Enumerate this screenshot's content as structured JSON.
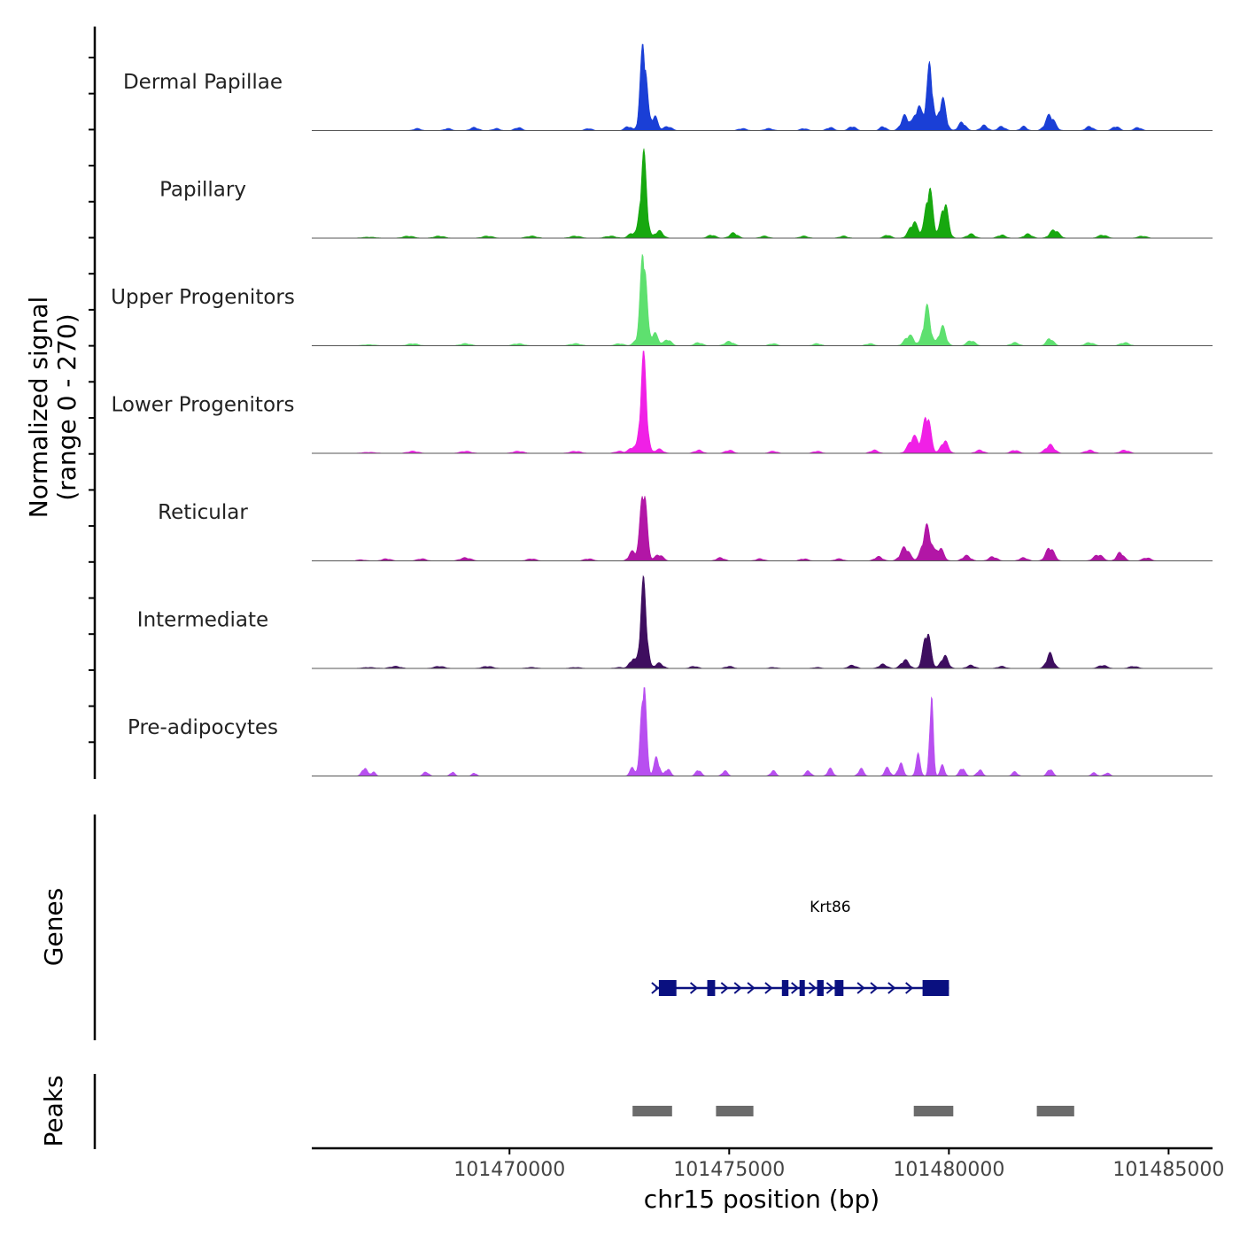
{
  "chart_data": {
    "type": "area",
    "title": "",
    "chromosome": "chr15",
    "xlabel": "chr15 position (bp)",
    "ylabel_line1": "Normalized signal",
    "ylabel_line2": "(range 0 - 270)",
    "xlim": [
      101465500,
      101486000
    ],
    "ylim": [
      0,
      270
    ],
    "xticks": [
      101470000,
      101475000,
      101480000,
      101485000
    ],
    "xtick_labels": [
      "101470000",
      "101475000",
      "101480000",
      "101485000"
    ],
    "signal_extent": [
      101466500,
      101485000
    ],
    "tracks": [
      {
        "name": "Dermal Papillae",
        "color": "#1a3fd6",
        "peaks": [
          [
            101467900,
            0.02,
            80
          ],
          [
            101468600,
            0.02,
            80
          ],
          [
            101469200,
            0.03,
            90
          ],
          [
            101469700,
            0.02,
            80
          ],
          [
            101470200,
            0.03,
            80
          ],
          [
            101471800,
            0.02,
            80
          ],
          [
            101472700,
            0.04,
            80
          ],
          [
            101473050,
            0.85,
            70
          ],
          [
            101473300,
            0.14,
            70
          ],
          [
            101473600,
            0.04,
            90
          ],
          [
            101475300,
            0.02,
            90
          ],
          [
            101475900,
            0.02,
            90
          ],
          [
            101476700,
            0.02,
            80
          ],
          [
            101477300,
            0.03,
            80
          ],
          [
            101477800,
            0.04,
            80
          ],
          [
            101478500,
            0.04,
            70
          ],
          [
            101479000,
            0.14,
            90
          ],
          [
            101479300,
            0.22,
            90
          ],
          [
            101479550,
            0.35,
            80
          ],
          [
            101479580,
            0.3,
            50
          ],
          [
            101479850,
            0.3,
            80
          ],
          [
            101480300,
            0.08,
            80
          ],
          [
            101480800,
            0.05,
            80
          ],
          [
            101481200,
            0.04,
            80
          ],
          [
            101481700,
            0.04,
            70
          ],
          [
            101482300,
            0.15,
            100
          ],
          [
            101483200,
            0.04,
            80
          ],
          [
            101483800,
            0.04,
            80
          ],
          [
            101484300,
            0.03,
            80
          ]
        ]
      },
      {
        "name": "Papillary",
        "color": "#17a80f",
        "peaks": [
          [
            101466800,
            0.01,
            150
          ],
          [
            101467700,
            0.02,
            120
          ],
          [
            101468400,
            0.02,
            120
          ],
          [
            101469500,
            0.02,
            120
          ],
          [
            101470500,
            0.02,
            120
          ],
          [
            101471500,
            0.02,
            120
          ],
          [
            101472300,
            0.02,
            120
          ],
          [
            101472800,
            0.05,
            90
          ],
          [
            101473050,
            0.78,
            70
          ],
          [
            101473400,
            0.07,
            90
          ],
          [
            101474600,
            0.03,
            90
          ],
          [
            101475100,
            0.05,
            90
          ],
          [
            101475800,
            0.02,
            90
          ],
          [
            101476700,
            0.02,
            90
          ],
          [
            101477600,
            0.02,
            90
          ],
          [
            101478600,
            0.03,
            80
          ],
          [
            101479200,
            0.15,
            100
          ],
          [
            101479550,
            0.48,
            80
          ],
          [
            101479900,
            0.34,
            80
          ],
          [
            101480500,
            0.04,
            90
          ],
          [
            101481200,
            0.03,
            90
          ],
          [
            101481800,
            0.04,
            90
          ],
          [
            101482400,
            0.08,
            100
          ],
          [
            101483500,
            0.03,
            100
          ],
          [
            101484400,
            0.02,
            100
          ]
        ]
      },
      {
        "name": "Upper Progenitors",
        "color": "#5ee06f",
        "peaks": [
          [
            101466800,
            0.01,
            150
          ],
          [
            101467800,
            0.02,
            120
          ],
          [
            101469000,
            0.02,
            120
          ],
          [
            101470200,
            0.02,
            120
          ],
          [
            101471500,
            0.02,
            120
          ],
          [
            101472500,
            0.02,
            100
          ],
          [
            101472900,
            0.05,
            80
          ],
          [
            101473050,
            0.95,
            65
          ],
          [
            101473300,
            0.12,
            80
          ],
          [
            101473600,
            0.06,
            80
          ],
          [
            101474300,
            0.03,
            90
          ],
          [
            101475000,
            0.04,
            100
          ],
          [
            101476000,
            0.02,
            90
          ],
          [
            101477000,
            0.02,
            90
          ],
          [
            101478200,
            0.02,
            90
          ],
          [
            101479100,
            0.1,
            100
          ],
          [
            101479500,
            0.36,
            80
          ],
          [
            101479850,
            0.18,
            80
          ],
          [
            101480500,
            0.05,
            90
          ],
          [
            101481500,
            0.03,
            90
          ],
          [
            101482300,
            0.07,
            80
          ],
          [
            101483200,
            0.03,
            100
          ],
          [
            101484000,
            0.03,
            100
          ]
        ]
      },
      {
        "name": "Lower Progenitors",
        "color": "#f020e6",
        "peaks": [
          [
            101466800,
            0.01,
            150
          ],
          [
            101467800,
            0.02,
            120
          ],
          [
            101469000,
            0.02,
            120
          ],
          [
            101470200,
            0.02,
            120
          ],
          [
            101471500,
            0.02,
            120
          ],
          [
            101472500,
            0.02,
            100
          ],
          [
            101472800,
            0.06,
            80
          ],
          [
            101473050,
            0.9,
            70
          ],
          [
            101473400,
            0.04,
            90
          ],
          [
            101474300,
            0.03,
            90
          ],
          [
            101475000,
            0.03,
            90
          ],
          [
            101476000,
            0.02,
            90
          ],
          [
            101477000,
            0.02,
            90
          ],
          [
            101478300,
            0.03,
            90
          ],
          [
            101479200,
            0.16,
            110
          ],
          [
            101479500,
            0.38,
            80
          ],
          [
            101479900,
            0.12,
            80
          ],
          [
            101480700,
            0.03,
            90
          ],
          [
            101481500,
            0.03,
            90
          ],
          [
            101482300,
            0.08,
            100
          ],
          [
            101483200,
            0.03,
            100
          ],
          [
            101484000,
            0.03,
            100
          ]
        ]
      },
      {
        "name": "Reticular",
        "color": "#b216a6",
        "peaks": [
          [
            101466600,
            0.01,
            120
          ],
          [
            101467200,
            0.02,
            100
          ],
          [
            101468000,
            0.02,
            100
          ],
          [
            101469000,
            0.03,
            120
          ],
          [
            101470500,
            0.02,
            100
          ],
          [
            101471800,
            0.02,
            100
          ],
          [
            101472800,
            0.09,
            80
          ],
          [
            101473050,
            0.73,
            70
          ],
          [
            101473400,
            0.06,
            90
          ],
          [
            101474800,
            0.03,
            90
          ],
          [
            101475700,
            0.02,
            90
          ],
          [
            101476700,
            0.02,
            90
          ],
          [
            101477500,
            0.02,
            90
          ],
          [
            101478400,
            0.04,
            90
          ],
          [
            101479000,
            0.13,
            100
          ],
          [
            101479500,
            0.32,
            100
          ],
          [
            101479800,
            0.12,
            80
          ],
          [
            101480400,
            0.05,
            90
          ],
          [
            101481000,
            0.04,
            90
          ],
          [
            101481700,
            0.03,
            90
          ],
          [
            101482300,
            0.13,
            90
          ],
          [
            101483400,
            0.06,
            100
          ],
          [
            101483900,
            0.08,
            80
          ],
          [
            101484500,
            0.03,
            90
          ]
        ]
      },
      {
        "name": "Intermediate",
        "color": "#3e0e5f",
        "peaks": [
          [
            101466800,
            0.01,
            150
          ],
          [
            101467400,
            0.02,
            120
          ],
          [
            101468400,
            0.02,
            120
          ],
          [
            101469500,
            0.02,
            120
          ],
          [
            101470500,
            0.01,
            120
          ],
          [
            101471500,
            0.01,
            120
          ],
          [
            101472500,
            0.01,
            100
          ],
          [
            101472800,
            0.09,
            70
          ],
          [
            101473050,
            0.8,
            70
          ],
          [
            101473400,
            0.05,
            90
          ],
          [
            101474200,
            0.02,
            90
          ],
          [
            101475000,
            0.02,
            90
          ],
          [
            101476000,
            0.01,
            90
          ],
          [
            101477000,
            0.01,
            90
          ],
          [
            101477800,
            0.03,
            90
          ],
          [
            101478500,
            0.04,
            90
          ],
          [
            101479000,
            0.08,
            90
          ],
          [
            101479500,
            0.36,
            80
          ],
          [
            101479900,
            0.12,
            80
          ],
          [
            101480500,
            0.03,
            90
          ],
          [
            101481200,
            0.02,
            90
          ],
          [
            101482300,
            0.14,
            80
          ],
          [
            101483500,
            0.03,
            100
          ],
          [
            101484200,
            0.02,
            100
          ]
        ]
      },
      {
        "name": "Pre-adipocytes",
        "color": "#b84ff0",
        "peaks": [
          [
            101466700,
            0.08,
            60
          ],
          [
            101466900,
            0.04,
            50
          ],
          [
            101468100,
            0.04,
            60
          ],
          [
            101468700,
            0.04,
            50
          ],
          [
            101469200,
            0.03,
            50
          ],
          [
            101472800,
            0.08,
            60
          ],
          [
            101473050,
            0.95,
            60
          ],
          [
            101473350,
            0.18,
            60
          ],
          [
            101473600,
            0.07,
            60
          ],
          [
            101474300,
            0.06,
            60
          ],
          [
            101474900,
            0.05,
            60
          ],
          [
            101476000,
            0.05,
            60
          ],
          [
            101476800,
            0.05,
            60
          ],
          [
            101477300,
            0.07,
            60
          ],
          [
            101478000,
            0.07,
            60
          ],
          [
            101478600,
            0.08,
            60
          ],
          [
            101478900,
            0.12,
            60
          ],
          [
            101479300,
            0.2,
            50
          ],
          [
            101479600,
            0.82,
            40
          ],
          [
            101479850,
            0.1,
            50
          ],
          [
            101480300,
            0.08,
            60
          ],
          [
            101480700,
            0.06,
            60
          ],
          [
            101481500,
            0.04,
            60
          ],
          [
            101482300,
            0.07,
            60
          ],
          [
            101483300,
            0.03,
            60
          ],
          [
            101483600,
            0.03,
            60
          ]
        ]
      }
    ],
    "genes_panel_label": "Genes",
    "genes": [
      {
        "name": "Krt86",
        "strand": "+",
        "start": 101473400,
        "end": 101480000,
        "exons": [
          [
            101473400,
            101473800
          ],
          [
            101474500,
            101474680
          ],
          [
            101476200,
            101476350
          ],
          [
            101476600,
            101476720
          ],
          [
            101477000,
            101477150
          ],
          [
            101477400,
            101477600
          ],
          [
            101479400,
            101480000
          ]
        ],
        "arrows": [
          101474200,
          101474900,
          101475200,
          101475500,
          101475900,
          101476500,
          101476900,
          101477300,
          101478000,
          101478300,
          101478700,
          101479100
        ]
      }
    ],
    "peaks_panel_label": "Peaks",
    "peak_regions": [
      [
        101472800,
        101473700
      ],
      [
        101474700,
        101475550
      ],
      [
        101479200,
        101480100
      ],
      [
        101482000,
        101482850
      ]
    ]
  }
}
